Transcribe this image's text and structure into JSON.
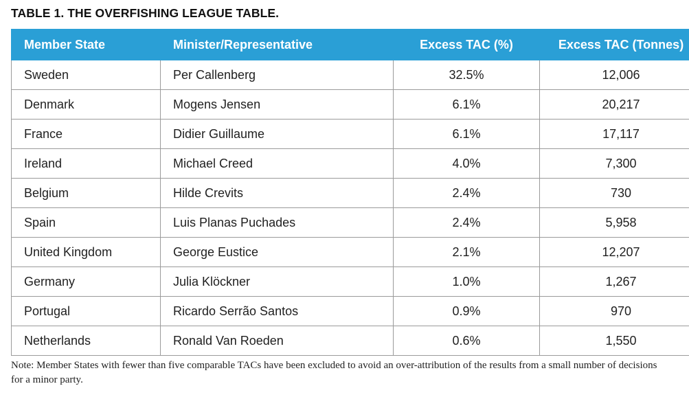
{
  "title": "TABLE 1. THE OVERFISHING LEAGUE TABLE.",
  "table": {
    "headers": [
      "Member State",
      "Minister/Representative",
      "Excess TAC (%)",
      "Excess TAC (Tonnes)"
    ],
    "rows": [
      [
        "Sweden",
        "Per Callenberg",
        "32.5%",
        "12,006"
      ],
      [
        "Denmark",
        "Mogens Jensen",
        "6.1%",
        "20,217"
      ],
      [
        "France",
        "Didier Guillaume",
        "6.1%",
        "17,117"
      ],
      [
        "Ireland",
        "Michael Creed",
        "4.0%",
        "7,300"
      ],
      [
        "Belgium",
        "Hilde Crevits",
        "2.4%",
        "730"
      ],
      [
        "Spain",
        "Luis Planas Puchades",
        "2.4%",
        "5,958"
      ],
      [
        "United Kingdom",
        "George Eustice",
        "2.1%",
        "12,207"
      ],
      [
        "Germany",
        "Julia Klöckner",
        "1.0%",
        "1,267"
      ],
      [
        "Portugal",
        "Ricardo Serrão Santos",
        "0.9%",
        "970"
      ],
      [
        "Netherlands",
        "Ronald Van Roeden",
        "0.6%",
        "1,550"
      ]
    ]
  },
  "note": "Note: Member States with fewer than five comparable TACs have been excluded to avoid an over-attribution of the results from a small number of decisions for a minor party.",
  "colors": {
    "header_bg": "#2a9fd6",
    "header_text": "#ffffff",
    "border": "#9a9a9a"
  }
}
